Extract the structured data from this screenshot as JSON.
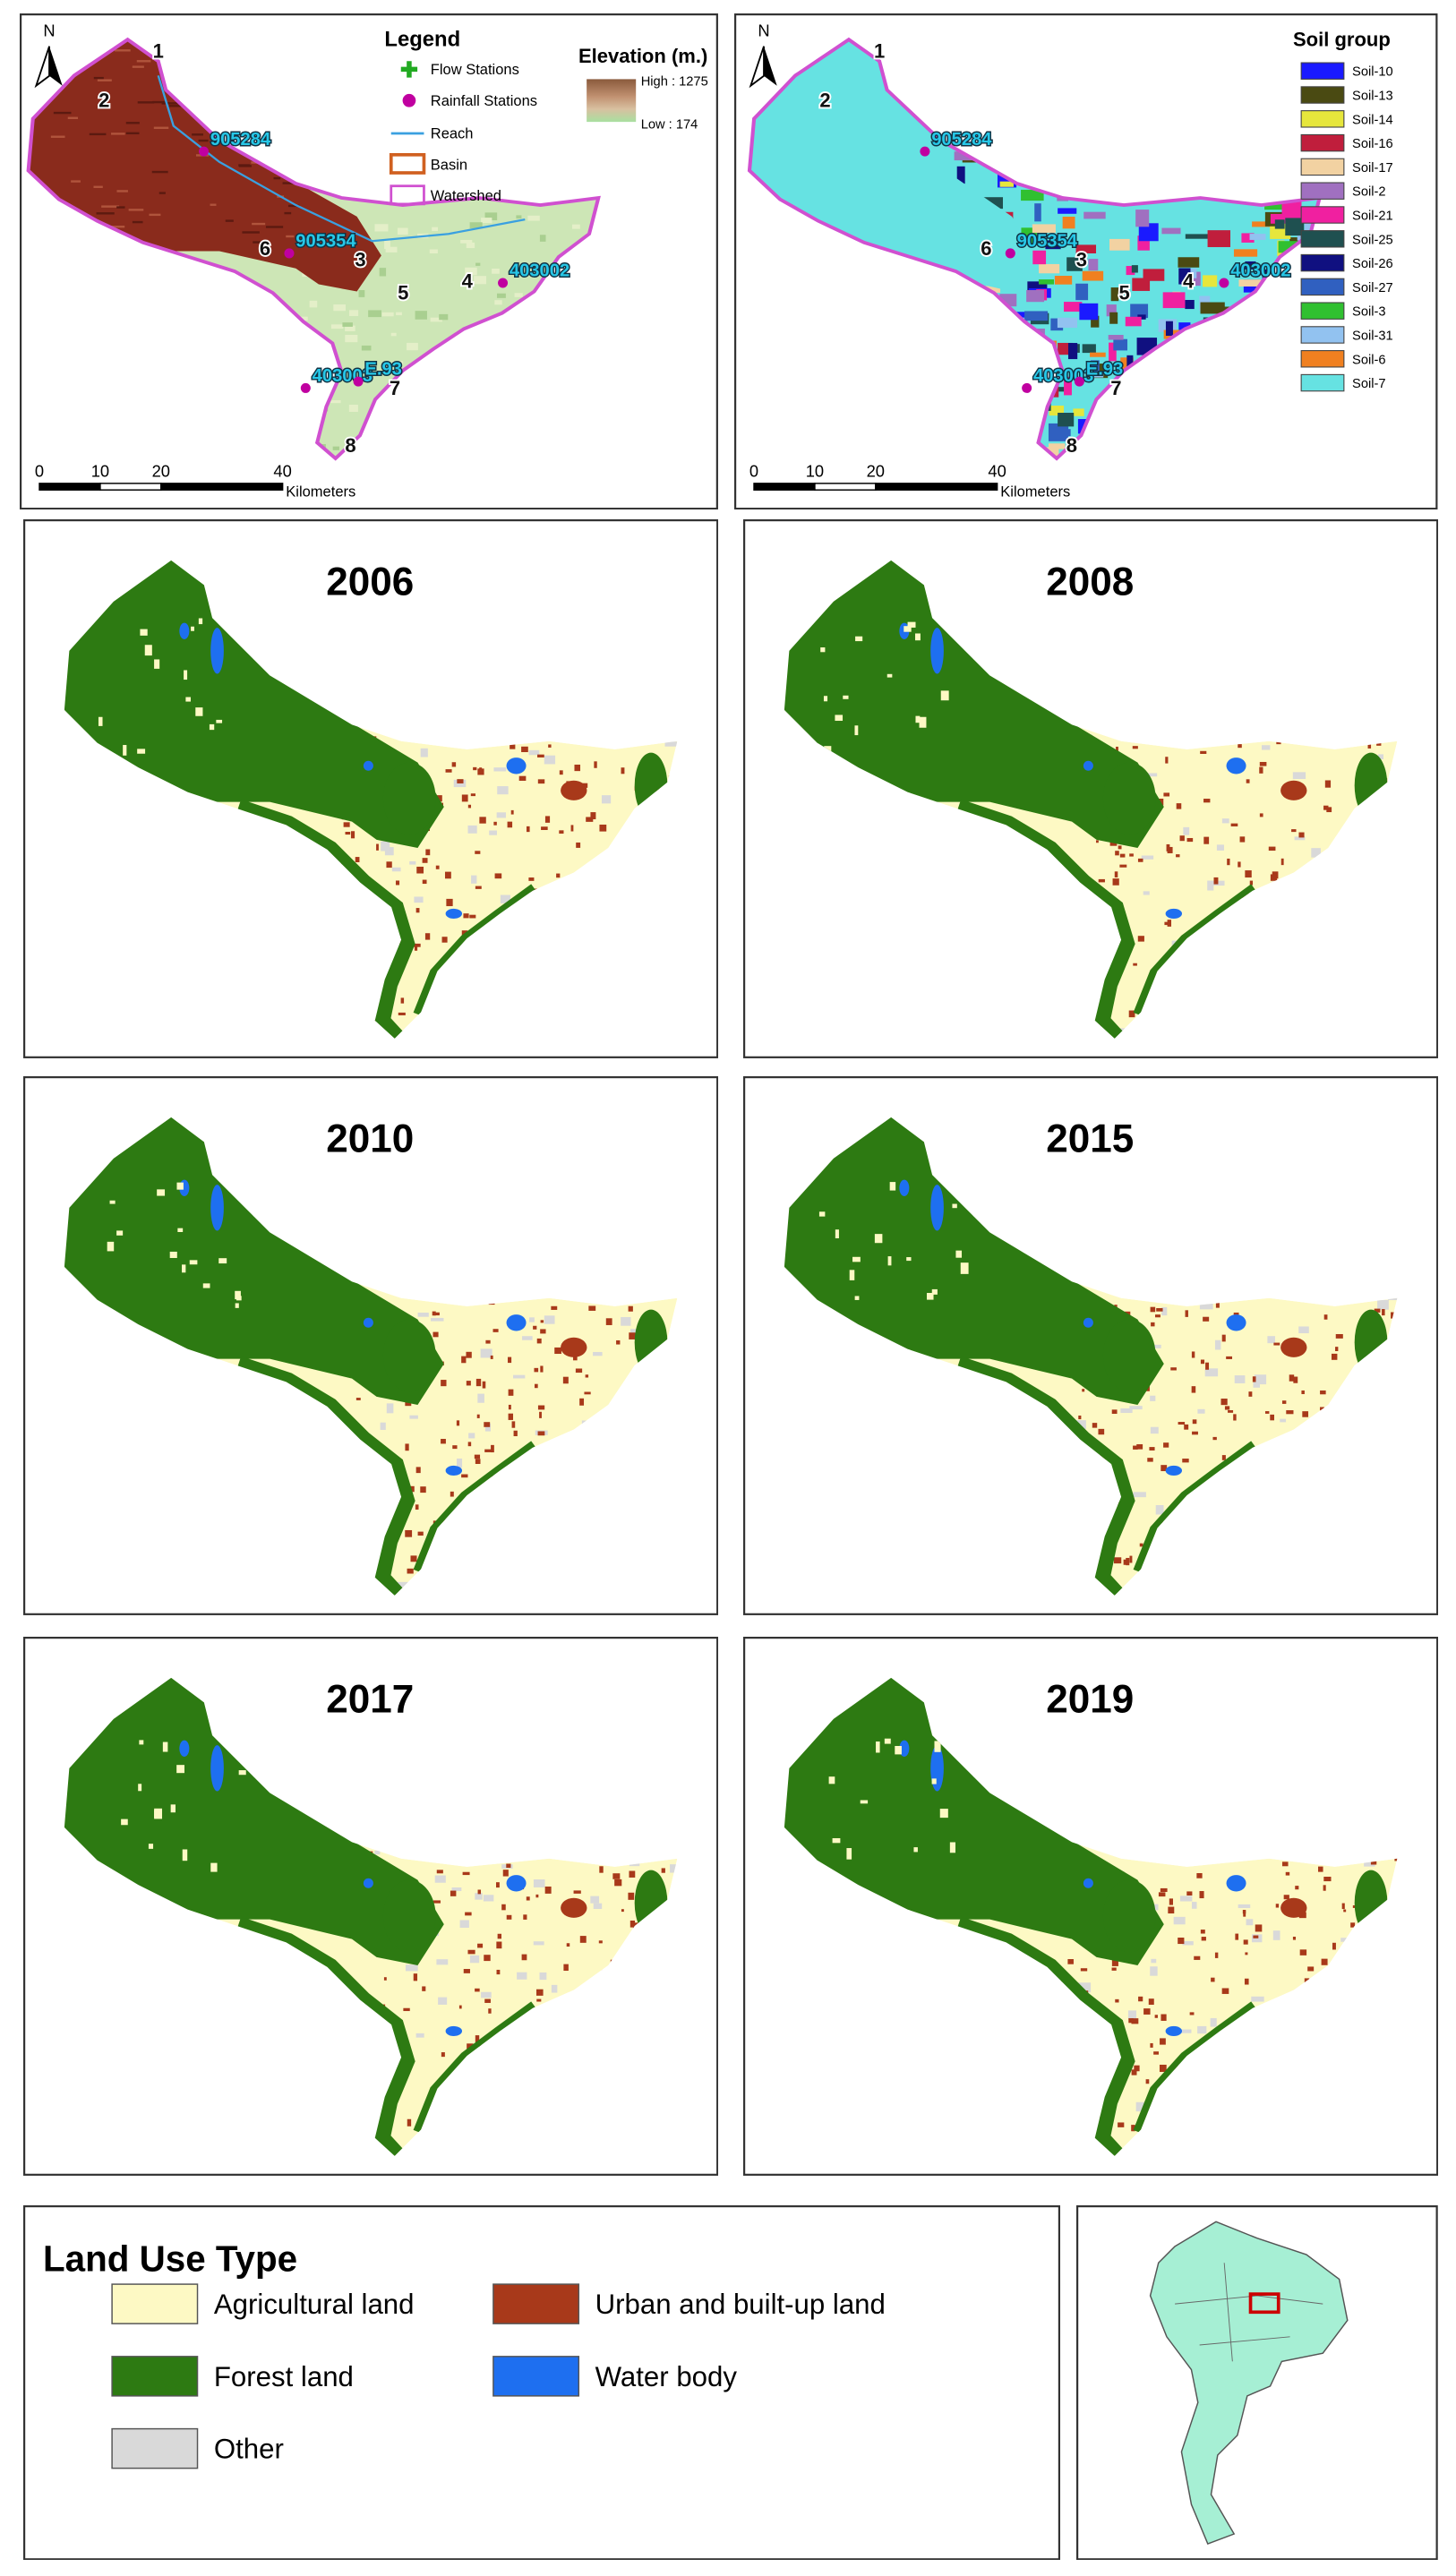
{
  "elevation_map": {
    "north": "N",
    "legend_title": "Legend",
    "legend_items": [
      "Flow Stations",
      "Rainfall Stations",
      "Reach",
      "Basin",
      "Watershed"
    ],
    "elevation_title": "Elevation (m.)",
    "elevation_high": "High : 1275",
    "elevation_low": "Low : 174",
    "subbasins": [
      "1",
      "2",
      "3",
      "4",
      "5",
      "6",
      "7",
      "8"
    ],
    "stations": [
      "905284",
      "905354",
      "403002",
      "403003",
      "E.93"
    ],
    "scale_bar": {
      "ticks": [
        0,
        10,
        20,
        40
      ],
      "unit": "Kilometers"
    }
  },
  "soil_map": {
    "north": "N",
    "legend_title": "Soil group",
    "soil_groups": [
      {
        "name": "Soil-10",
        "color": "#1a1aff"
      },
      {
        "name": "Soil-13",
        "color": "#4a4a12"
      },
      {
        "name": "Soil-14",
        "color": "#e6e63c"
      },
      {
        "name": "Soil-16",
        "color": "#c01e3c"
      },
      {
        "name": "Soil-17",
        "color": "#f2d2a2"
      },
      {
        "name": "Soil-2",
        "color": "#a070c0"
      },
      {
        "name": "Soil-21",
        "color": "#f020a0"
      },
      {
        "name": "Soil-25",
        "color": "#1f5050"
      },
      {
        "name": "Soil-26",
        "color": "#101080"
      },
      {
        "name": "Soil-27",
        "color": "#3060c0"
      },
      {
        "name": "Soil-3",
        "color": "#30c030"
      },
      {
        "name": "Soil-31",
        "color": "#92c2f0"
      },
      {
        "name": "Soil-6",
        "color": "#f08020"
      },
      {
        "name": "Soil-7",
        "color": "#66e2e2"
      }
    ],
    "subbasins": [
      "1",
      "2",
      "3",
      "4",
      "5",
      "6",
      "7",
      "8"
    ],
    "stations": [
      "905284",
      "905354",
      "403002",
      "403003",
      "E.93"
    ],
    "scale_bar": {
      "ticks": [
        0,
        10,
        20,
        40
      ],
      "unit": "Kilometers"
    }
  },
  "land_use_maps": [
    {
      "year": "2006"
    },
    {
      "year": "2008"
    },
    {
      "year": "2010"
    },
    {
      "year": "2015"
    },
    {
      "year": "2017"
    },
    {
      "year": "2019"
    }
  ],
  "legend": {
    "title": "Land Use Type",
    "items": [
      {
        "name": "Agricultural land",
        "color": "#fdf9c4"
      },
      {
        "name": "Forest land",
        "color": "#2d7a12"
      },
      {
        "name": "Other",
        "color": "#d9d9d9"
      },
      {
        "name": "Urban and built-up land",
        "color": "#a8391a"
      },
      {
        "name": "Water body",
        "color": "#1e6ff0"
      }
    ]
  }
}
